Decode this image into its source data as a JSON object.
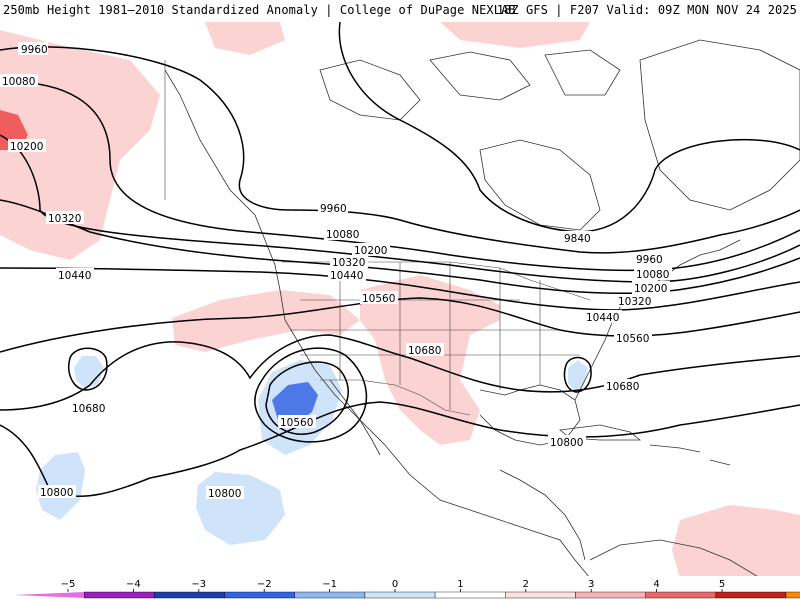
{
  "header": {
    "left": "250mb Height 1981–2010 Standardized Anomaly | College of DuPage NEXLAB",
    "right": "18Z GFS | F207 Valid: 09Z MON NOV 24 2025"
  },
  "contour_labels": [
    "9960",
    "10080",
    "10200",
    "10320",
    "10440",
    "10560",
    "10680",
    "10800",
    "9840"
  ],
  "colorbar": {
    "ticks": [
      "−5",
      "−4",
      "−3",
      "−2",
      "−1",
      "0",
      "1",
      "2",
      "3",
      "4",
      "5"
    ],
    "colors": [
      "#e36ee6",
      "#9b1fbd",
      "#1f3fae",
      "#3463e8",
      "#8fb8f0",
      "#cfe3fa",
      "#ffffff",
      "#fde0e0",
      "#f6b3b3",
      "#e96a6a",
      "#c21e1e",
      "#ff8a00",
      "#ffd000"
    ]
  },
  "legend": {
    "neg": "#cfe3fa",
    "neg_strong": "#4d78e8",
    "pos": "#fbd3d3",
    "pos_strong": "#ef5d5d"
  }
}
